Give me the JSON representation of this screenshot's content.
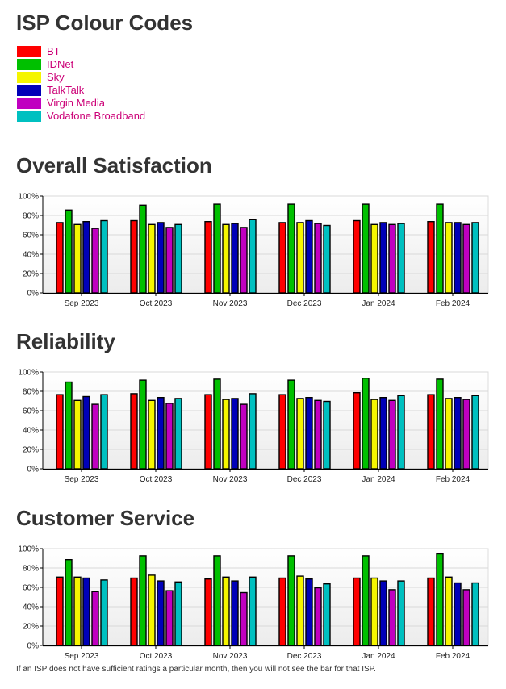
{
  "page_title": "ISP Colour Codes",
  "legend": [
    {
      "name": "BT",
      "color": "#ff0000"
    },
    {
      "name": "IDNet",
      "color": "#00c000"
    },
    {
      "name": "Sky",
      "color": "#f5f500"
    },
    {
      "name": "TalkTalk",
      "color": "#0000b8"
    },
    {
      "name": "Virgin Media",
      "color": "#c000c0"
    },
    {
      "name": "Vodafone Broadband",
      "color": "#00c0c0"
    }
  ],
  "footnote": "If an ISP does not have sufficient ratings a particular month, then you will not see the bar for that ISP.",
  "chart_data": [
    {
      "type": "bar",
      "title": "Overall Satisfaction",
      "xlabel": "",
      "ylabel": "",
      "ylim": [
        0,
        100
      ],
      "yticks": [
        "0%",
        "20%",
        "40%",
        "60%",
        "80%",
        "100%"
      ],
      "grid": true,
      "legend": "none",
      "categories": [
        "Sep 2023",
        "Oct 2023",
        "Nov 2023",
        "Dec 2023",
        "Jan 2024",
        "Feb 2024"
      ],
      "series": [
        {
          "name": "BT",
          "values": [
            73,
            75,
            74,
            73,
            75,
            74
          ]
        },
        {
          "name": "IDNet",
          "values": [
            86,
            91,
            92,
            92,
            92,
            92
          ]
        },
        {
          "name": "Sky",
          "values": [
            71,
            71,
            71,
            73,
            71,
            73
          ]
        },
        {
          "name": "TalkTalk",
          "values": [
            74,
            73,
            72,
            75,
            73,
            73
          ]
        },
        {
          "name": "Virgin Media",
          "values": [
            67,
            68,
            68,
            72,
            71,
            71
          ]
        },
        {
          "name": "Vodafone Broadband",
          "values": [
            75,
            71,
            76,
            70,
            72,
            73
          ]
        }
      ]
    },
    {
      "type": "bar",
      "title": "Reliability",
      "xlabel": "",
      "ylabel": "",
      "ylim": [
        0,
        100
      ],
      "yticks": [
        "0%",
        "20%",
        "40%",
        "60%",
        "80%",
        "100%"
      ],
      "grid": true,
      "legend": "none",
      "categories": [
        "Sep 2023",
        "Oct 2023",
        "Nov 2023",
        "Dec 2023",
        "Jan 2024",
        "Feb 2024"
      ],
      "series": [
        {
          "name": "BT",
          "values": [
            77,
            78,
            77,
            77,
            79,
            77
          ]
        },
        {
          "name": "IDNet",
          "values": [
            90,
            92,
            93,
            92,
            94,
            93
          ]
        },
        {
          "name": "Sky",
          "values": [
            71,
            71,
            72,
            73,
            72,
            73
          ]
        },
        {
          "name": "TalkTalk",
          "values": [
            75,
            74,
            73,
            74,
            74,
            74
          ]
        },
        {
          "name": "Virgin Media",
          "values": [
            67,
            68,
            67,
            71,
            71,
            72
          ]
        },
        {
          "name": "Vodafone Broadband",
          "values": [
            77,
            73,
            78,
            70,
            76,
            76
          ]
        }
      ]
    },
    {
      "type": "bar",
      "title": "Customer Service",
      "xlabel": "",
      "ylabel": "",
      "ylim": [
        0,
        100
      ],
      "yticks": [
        "0%",
        "20%",
        "40%",
        "60%",
        "80%",
        "100%"
      ],
      "grid": true,
      "legend": "none",
      "categories": [
        "Sep 2023",
        "Oct 2023",
        "Nov 2023",
        "Dec 2023",
        "Jan 2024",
        "Feb 2024"
      ],
      "series": [
        {
          "name": "BT",
          "values": [
            71,
            70,
            69,
            70,
            70,
            70
          ]
        },
        {
          "name": "IDNet",
          "values": [
            89,
            93,
            93,
            93,
            93,
            95
          ]
        },
        {
          "name": "Sky",
          "values": [
            71,
            73,
            71,
            72,
            70,
            71
          ]
        },
        {
          "name": "TalkTalk",
          "values": [
            70,
            67,
            67,
            69,
            67,
            65
          ]
        },
        {
          "name": "Virgin Media",
          "values": [
            56,
            57,
            55,
            60,
            58,
            58
          ]
        },
        {
          "name": "Vodafone Broadband",
          "values": [
            68,
            66,
            71,
            64,
            67,
            65
          ]
        }
      ]
    }
  ]
}
